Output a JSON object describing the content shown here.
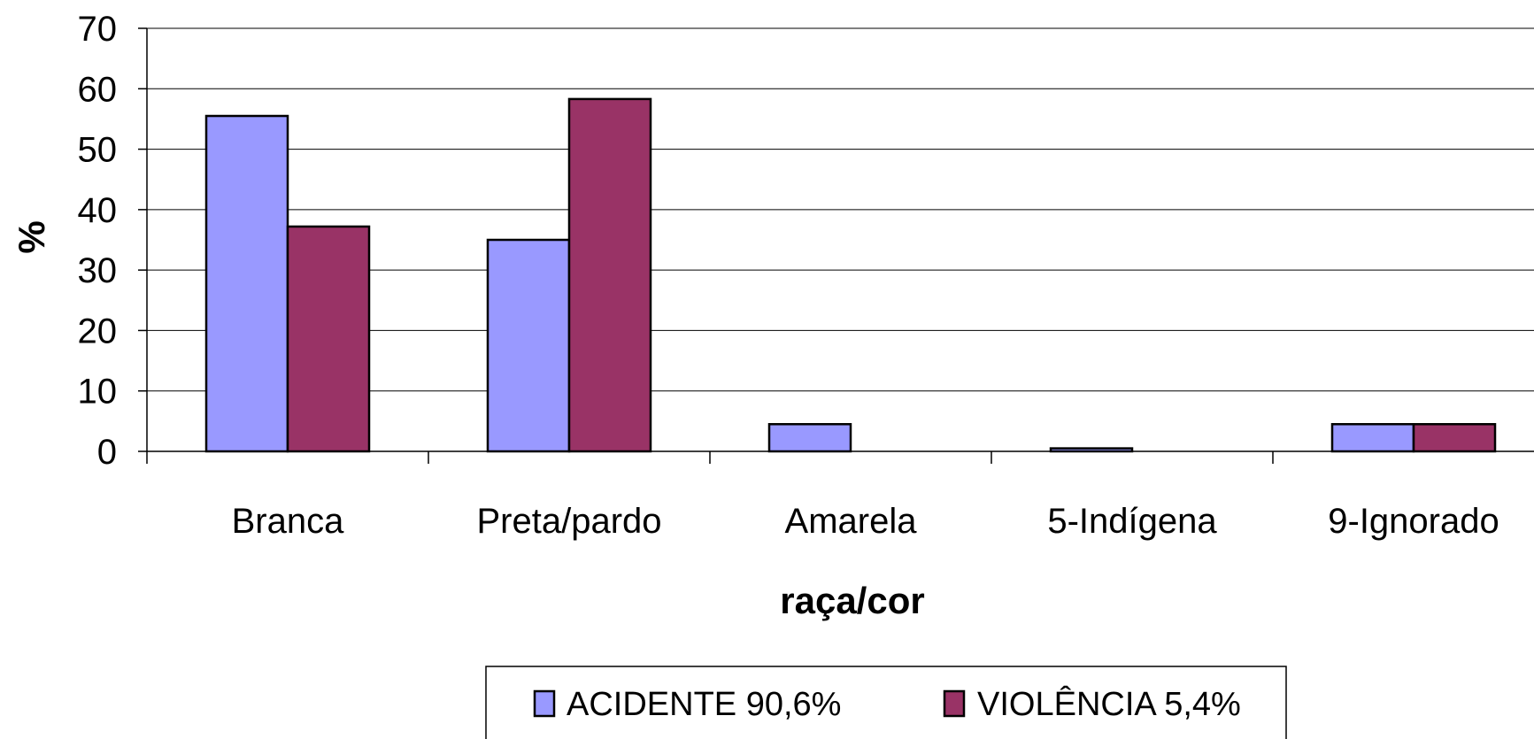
{
  "chart_data": {
    "type": "bar",
    "categories": [
      "Branca",
      "Preta/pardo",
      "Amarela",
      "5-Indígena",
      "9-Ignorado"
    ],
    "series": [
      {
        "name": "ACIDENTE 90,6%",
        "color": "#9999ff",
        "values": [
          55.5,
          35.0,
          4.5,
          0.5,
          4.5
        ]
      },
      {
        "name": "VIOLÊNCIA 5,4%",
        "color": "#993366",
        "values": [
          37.2,
          58.3,
          0,
          0,
          4.5
        ]
      }
    ],
    "xlabel": "raça/cor",
    "ylabel": "%",
    "ylim": [
      0,
      70
    ],
    "yticks": [
      "0",
      "10",
      "20",
      "30",
      "40",
      "50",
      "60",
      "70"
    ],
    "grid": true,
    "legend_position": "bottom"
  }
}
